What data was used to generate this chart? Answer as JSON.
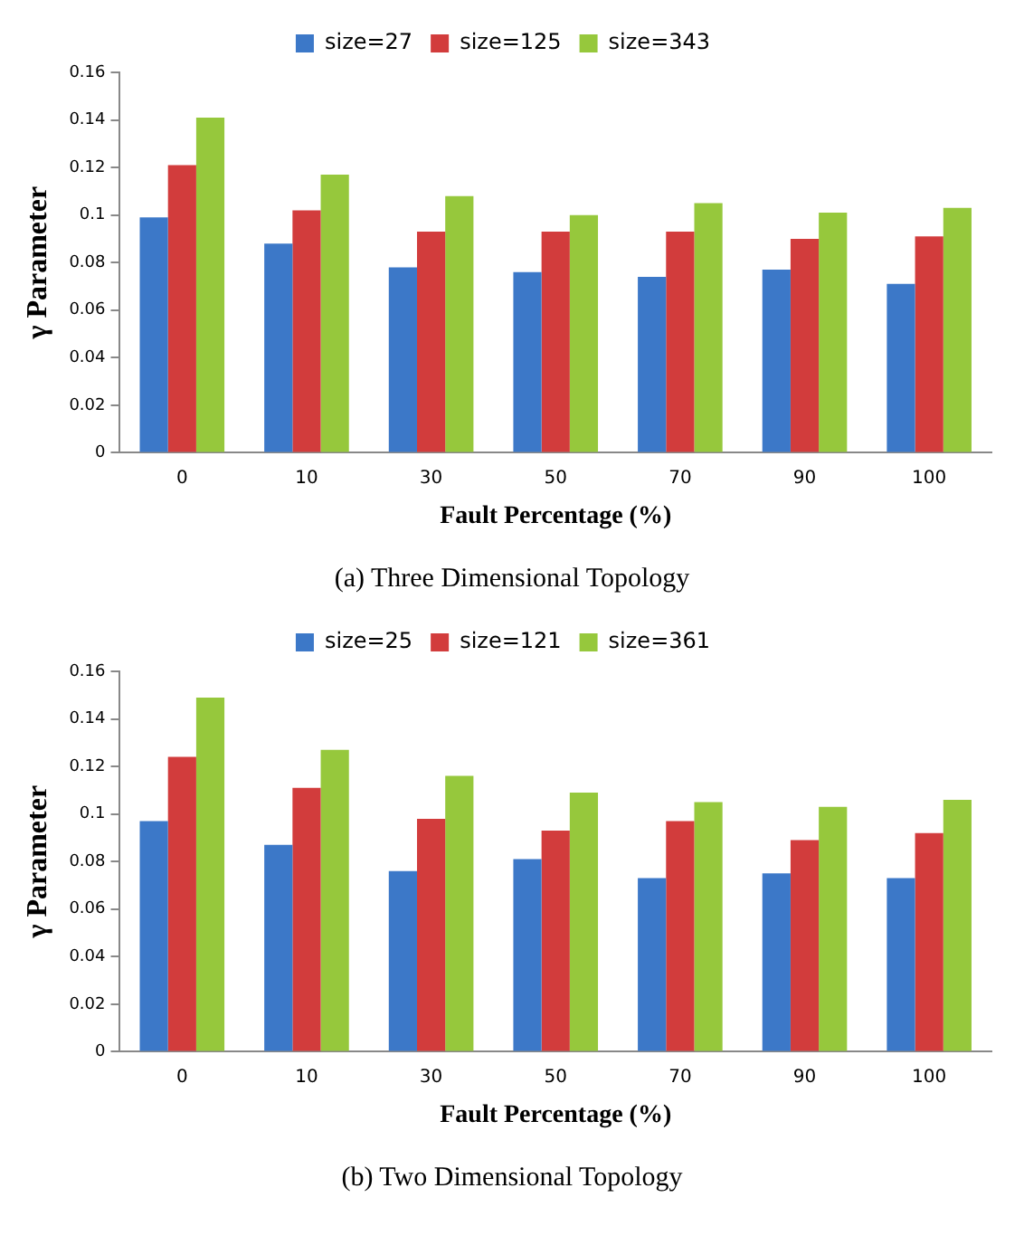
{
  "chart_data": [
    {
      "type": "bar",
      "categories": [
        "0",
        "10",
        "30",
        "50",
        "70",
        "90",
        "100"
      ],
      "xlabel": "Fault Percentage (%)",
      "ylabel": "γ Parameter",
      "ylim": [
        0,
        0.16
      ],
      "yticks": [
        0,
        0.02,
        0.04,
        0.06,
        0.08,
        0.1,
        0.12,
        0.14,
        0.16
      ],
      "grid": false,
      "legend": "top",
      "annotations": [
        "(a) Three Dimensional Topology"
      ],
      "series": [
        {
          "name": "size=27",
          "color": "#3c78c8",
          "values": [
            0.099,
            0.088,
            0.078,
            0.076,
            0.074,
            0.077,
            0.071
          ]
        },
        {
          "name": "size=125",
          "color": "#d23c3c",
          "values": [
            0.121,
            0.102,
            0.093,
            0.093,
            0.093,
            0.09,
            0.091
          ]
        },
        {
          "name": "size=343",
          "color": "#96c83c",
          "values": [
            0.141,
            0.117,
            0.108,
            0.1,
            0.105,
            0.101,
            0.103
          ]
        }
      ]
    },
    {
      "type": "bar",
      "categories": [
        "0",
        "10",
        "30",
        "50",
        "70",
        "90",
        "100"
      ],
      "xlabel": "Fault Percentage (%)",
      "ylabel": "γ Parameter",
      "ylim": [
        0,
        0.16
      ],
      "yticks": [
        0,
        0.02,
        0.04,
        0.06,
        0.08,
        0.1,
        0.12,
        0.14,
        0.16
      ],
      "grid": false,
      "legend": "top",
      "annotations": [
        "(b) Two Dimensional Topology"
      ],
      "series": [
        {
          "name": "size=25",
          "color": "#3c78c8",
          "values": [
            0.097,
            0.087,
            0.076,
            0.081,
            0.073,
            0.075,
            0.073
          ]
        },
        {
          "name": "size=121",
          "color": "#d23c3c",
          "values": [
            0.124,
            0.111,
            0.098,
            0.093,
            0.097,
            0.089,
            0.092
          ]
        },
        {
          "name": "size=361",
          "color": "#96c83c",
          "values": [
            0.149,
            0.127,
            0.116,
            0.109,
            0.105,
            0.103,
            0.106
          ]
        }
      ]
    }
  ]
}
